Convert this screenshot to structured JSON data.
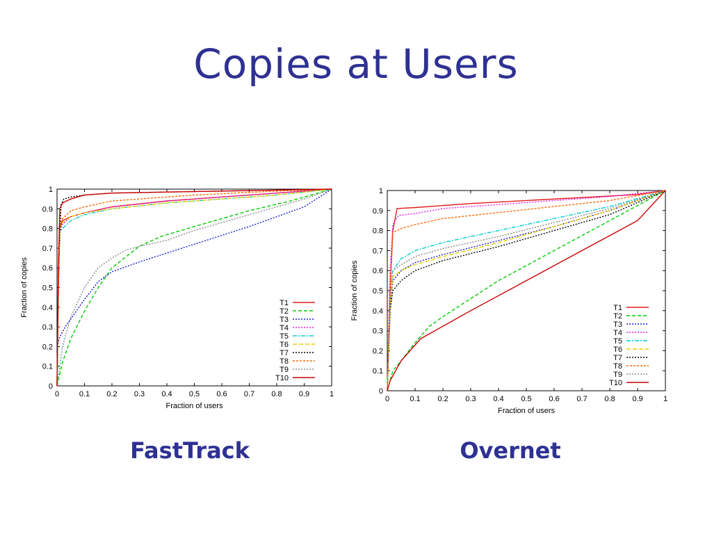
{
  "slide": {
    "title": "Copies at Users"
  },
  "captions": {
    "left": "FastTrack",
    "right": "Overnet"
  },
  "chart_data": [
    {
      "type": "line",
      "title": "",
      "xlabel": "Fraction of users",
      "ylabel": "Fraction of copies",
      "xlim": [
        0,
        1
      ],
      "ylim": [
        0,
        1
      ],
      "xticks": [
        "0",
        "0.1",
        "0.2",
        "0.3",
        "0.4",
        "0.5",
        "0.6",
        "0.7",
        "0.8",
        "0.9",
        "1"
      ],
      "yticks": [
        "0",
        "0.1",
        "0.2",
        "0.3",
        "0.4",
        "0.5",
        "0.6",
        "0.7",
        "0.8",
        "0.9",
        "1"
      ],
      "grid": false,
      "legend": "bottom-right",
      "series": [
        {
          "name": "T1",
          "color": "#e41a1c",
          "dash": "",
          "points": [
            [
              0,
              0
            ],
            [
              0.005,
              0.5
            ],
            [
              0.01,
              0.8
            ],
            [
              0.02,
              0.84
            ],
            [
              0.05,
              0.86
            ],
            [
              0.1,
              0.88
            ],
            [
              0.2,
              0.91
            ],
            [
              0.4,
              0.94
            ],
            [
              0.6,
              0.96
            ],
            [
              0.8,
              0.98
            ],
            [
              1,
              1
            ]
          ]
        },
        {
          "name": "T2",
          "color": "#00cc00",
          "dash": "5,3",
          "points": [
            [
              0,
              0
            ],
            [
              0.02,
              0.12
            ],
            [
              0.05,
              0.24
            ],
            [
              0.1,
              0.38
            ],
            [
              0.15,
              0.5
            ],
            [
              0.2,
              0.6
            ],
            [
              0.3,
              0.71
            ],
            [
              0.38,
              0.76
            ],
            [
              0.5,
              0.81
            ],
            [
              0.7,
              0.89
            ],
            [
              0.85,
              0.94
            ],
            [
              1,
              1
            ]
          ]
        },
        {
          "name": "T3",
          "color": "#1a1acc",
          "dash": "2,2",
          "points": [
            [
              0,
              0.2
            ],
            [
              0.01,
              0.25
            ],
            [
              0.03,
              0.3
            ],
            [
              0.05,
              0.34
            ],
            [
              0.1,
              0.44
            ],
            [
              0.15,
              0.53
            ],
            [
              0.2,
              0.58
            ],
            [
              0.3,
              0.63
            ],
            [
              0.5,
              0.72
            ],
            [
              0.7,
              0.81
            ],
            [
              0.9,
              0.91
            ],
            [
              1,
              1
            ]
          ]
        },
        {
          "name": "T4",
          "color": "#e020e0",
          "dash": "2,2",
          "points": [
            [
              0,
              0
            ],
            [
              0.005,
              0.5
            ],
            [
              0.01,
              0.78
            ],
            [
              0.02,
              0.82
            ],
            [
              0.05,
              0.86
            ],
            [
              0.1,
              0.88
            ],
            [
              0.2,
              0.91
            ],
            [
              0.4,
              0.94
            ],
            [
              0.6,
              0.96
            ],
            [
              0.8,
              0.98
            ],
            [
              1,
              1
            ]
          ]
        },
        {
          "name": "T5",
          "color": "#00cccc",
          "dash": "6,2,2,2",
          "points": [
            [
              0,
              0
            ],
            [
              0.005,
              0.5
            ],
            [
              0.01,
              0.78
            ],
            [
              0.02,
              0.8
            ],
            [
              0.05,
              0.84
            ],
            [
              0.1,
              0.87
            ],
            [
              0.2,
              0.9
            ],
            [
              0.4,
              0.93
            ],
            [
              0.6,
              0.95
            ],
            [
              0.8,
              0.97
            ],
            [
              1,
              1
            ]
          ]
        },
        {
          "name": "T6",
          "color": "#e8d000",
          "dash": "6,3",
          "points": [
            [
              0,
              0
            ],
            [
              0.005,
              0.5
            ],
            [
              0.01,
              0.8
            ],
            [
              0.02,
              0.83
            ],
            [
              0.05,
              0.86
            ],
            [
              0.1,
              0.88
            ],
            [
              0.2,
              0.9
            ],
            [
              0.4,
              0.93
            ],
            [
              0.6,
              0.95
            ],
            [
              0.8,
              0.97
            ],
            [
              1,
              1
            ]
          ]
        },
        {
          "name": "T7",
          "color": "#000000",
          "dash": "2,2",
          "points": [
            [
              0,
              0
            ],
            [
              0.005,
              0.6
            ],
            [
              0.015,
              0.92
            ],
            [
              0.025,
              0.95
            ],
            [
              0.05,
              0.96
            ],
            [
              0.1,
              0.97
            ],
            [
              0.2,
              0.98
            ],
            [
              0.4,
              0.985
            ],
            [
              0.6,
              0.99
            ],
            [
              0.8,
              0.995
            ],
            [
              1,
              1
            ]
          ]
        },
        {
          "name": "T8",
          "color": "#ff6600",
          "dash": "3,2",
          "points": [
            [
              0,
              0
            ],
            [
              0.005,
              0.5
            ],
            [
              0.01,
              0.82
            ],
            [
              0.02,
              0.85
            ],
            [
              0.05,
              0.89
            ],
            [
              0.1,
              0.91
            ],
            [
              0.2,
              0.94
            ],
            [
              0.3,
              0.95
            ],
            [
              0.5,
              0.97
            ],
            [
              0.8,
              0.99
            ],
            [
              1,
              1
            ]
          ]
        },
        {
          "name": "T9",
          "color": "#888888",
          "dash": "2,2",
          "points": [
            [
              0,
              0
            ],
            [
              0.02,
              0.2
            ],
            [
              0.05,
              0.35
            ],
            [
              0.1,
              0.5
            ],
            [
              0.15,
              0.6
            ],
            [
              0.2,
              0.65
            ],
            [
              0.25,
              0.69
            ],
            [
              0.3,
              0.71
            ],
            [
              0.4,
              0.74
            ],
            [
              0.5,
              0.79
            ],
            [
              0.7,
              0.87
            ],
            [
              0.9,
              0.95
            ],
            [
              1,
              1
            ]
          ]
        },
        {
          "name": "T10",
          "color": "#cc0000",
          "dash": "",
          "points": [
            [
              0,
              0
            ],
            [
              0.005,
              0.6
            ],
            [
              0.01,
              0.9
            ],
            [
              0.02,
              0.93
            ],
            [
              0.05,
              0.95
            ],
            [
              0.1,
              0.97
            ],
            [
              0.2,
              0.98
            ],
            [
              0.4,
              0.985
            ],
            [
              0.6,
              0.99
            ],
            [
              0.8,
              0.995
            ],
            [
              1,
              1
            ]
          ]
        }
      ]
    },
    {
      "type": "line",
      "title": "",
      "xlabel": "Fraction of users",
      "ylabel": "Fraction of copies",
      "xlim": [
        0,
        1
      ],
      "ylim": [
        0,
        1
      ],
      "xticks": [
        "0",
        "0.1",
        "0.2",
        "0.3",
        "0.4",
        "0.5",
        "0.6",
        "0.7",
        "0.8",
        "0.9",
        "1"
      ],
      "yticks": [
        "0",
        "0.1",
        "0.2",
        "0.3",
        "0.4",
        "0.5",
        "0.6",
        "0.7",
        "0.8",
        "0.9",
        "1"
      ],
      "grid": false,
      "legend": "bottom-right",
      "series": [
        {
          "name": "T1",
          "color": "#e41a1c",
          "dash": "",
          "points": [
            [
              0,
              0
            ],
            [
              0.01,
              0.5
            ],
            [
              0.02,
              0.8
            ],
            [
              0.035,
              0.91
            ],
            [
              0.1,
              0.915
            ],
            [
              0.3,
              0.935
            ],
            [
              0.5,
              0.95
            ],
            [
              0.7,
              0.965
            ],
            [
              0.9,
              0.98
            ],
            [
              1,
              1
            ]
          ]
        },
        {
          "name": "T2",
          "color": "#00cc00",
          "dash": "5,3",
          "points": [
            [
              0,
              0
            ],
            [
              0.02,
              0.1
            ],
            [
              0.05,
              0.15
            ],
            [
              0.1,
              0.24
            ],
            [
              0.15,
              0.32
            ],
            [
              0.2,
              0.37
            ],
            [
              0.4,
              0.55
            ],
            [
              0.6,
              0.7
            ],
            [
              0.8,
              0.85
            ],
            [
              1,
              1
            ]
          ]
        },
        {
          "name": "T3",
          "color": "#1a1acc",
          "dash": "2,2",
          "points": [
            [
              0,
              0
            ],
            [
              0.01,
              0.4
            ],
            [
              0.02,
              0.55
            ],
            [
              0.05,
              0.6
            ],
            [
              0.1,
              0.64
            ],
            [
              0.2,
              0.68
            ],
            [
              0.4,
              0.75
            ],
            [
              0.6,
              0.82
            ],
            [
              0.8,
              0.9
            ],
            [
              1,
              1
            ]
          ]
        },
        {
          "name": "T4",
          "color": "#e020e0",
          "dash": "2,2",
          "points": [
            [
              0,
              0
            ],
            [
              0.01,
              0.6
            ],
            [
              0.02,
              0.83
            ],
            [
              0.04,
              0.875
            ],
            [
              0.1,
              0.885
            ],
            [
              0.2,
              0.91
            ],
            [
              0.4,
              0.93
            ],
            [
              0.6,
              0.95
            ],
            [
              0.8,
              0.97
            ],
            [
              1,
              1
            ]
          ]
        },
        {
          "name": "T5",
          "color": "#00cccc",
          "dash": "6,2,2,2",
          "points": [
            [
              0,
              0
            ],
            [
              0.01,
              0.45
            ],
            [
              0.02,
              0.6
            ],
            [
              0.05,
              0.66
            ],
            [
              0.1,
              0.7
            ],
            [
              0.2,
              0.74
            ],
            [
              0.4,
              0.8
            ],
            [
              0.6,
              0.86
            ],
            [
              0.8,
              0.92
            ],
            [
              1,
              1
            ]
          ]
        },
        {
          "name": "T6",
          "color": "#e8d000",
          "dash": "6,3",
          "points": [
            [
              0,
              0
            ],
            [
              0.01,
              0.4
            ],
            [
              0.02,
              0.57
            ],
            [
              0.05,
              0.6
            ],
            [
              0.1,
              0.63
            ],
            [
              0.2,
              0.67
            ],
            [
              0.4,
              0.74
            ],
            [
              0.6,
              0.82
            ],
            [
              0.8,
              0.9
            ],
            [
              1,
              1
            ]
          ]
        },
        {
          "name": "T7",
          "color": "#000000",
          "dash": "2,2",
          "points": [
            [
              0,
              0
            ],
            [
              0.01,
              0.4
            ],
            [
              0.02,
              0.5
            ],
            [
              0.05,
              0.55
            ],
            [
              0.1,
              0.6
            ],
            [
              0.2,
              0.65
            ],
            [
              0.4,
              0.72
            ],
            [
              0.6,
              0.8
            ],
            [
              0.8,
              0.88
            ],
            [
              1,
              1
            ]
          ]
        },
        {
          "name": "T8",
          "color": "#ff6600",
          "dash": "3,2",
          "points": [
            [
              0,
              0
            ],
            [
              0.01,
              0.5
            ],
            [
              0.02,
              0.79
            ],
            [
              0.05,
              0.81
            ],
            [
              0.1,
              0.83
            ],
            [
              0.2,
              0.86
            ],
            [
              0.4,
              0.89
            ],
            [
              0.6,
              0.92
            ],
            [
              0.8,
              0.95
            ],
            [
              1,
              1
            ]
          ]
        },
        {
          "name": "T9",
          "color": "#888888",
          "dash": "2,2",
          "points": [
            [
              0,
              0
            ],
            [
              0.01,
              0.45
            ],
            [
              0.02,
              0.6
            ],
            [
              0.05,
              0.63
            ],
            [
              0.1,
              0.67
            ],
            [
              0.2,
              0.71
            ],
            [
              0.4,
              0.77
            ],
            [
              0.6,
              0.84
            ],
            [
              0.8,
              0.91
            ],
            [
              1,
              1
            ]
          ]
        },
        {
          "name": "T10",
          "color": "#cc0000",
          "dash": "",
          "points": [
            [
              0,
              0
            ],
            [
              0.01,
              0.05
            ],
            [
              0.05,
              0.15
            ],
            [
              0.12,
              0.26
            ],
            [
              0.3,
              0.4
            ],
            [
              0.5,
              0.55
            ],
            [
              0.7,
              0.7
            ],
            [
              0.9,
              0.85
            ],
            [
              0.98,
              0.97
            ],
            [
              1,
              1
            ]
          ]
        }
      ]
    }
  ]
}
